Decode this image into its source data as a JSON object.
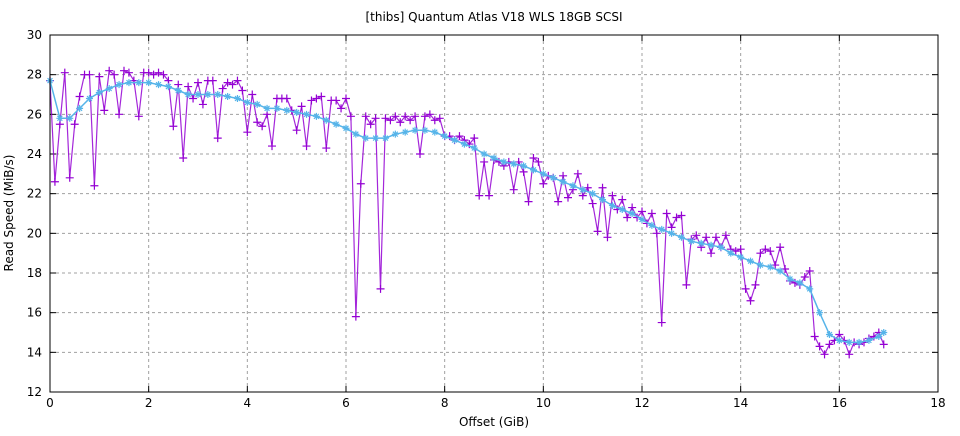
{
  "chart_data": {
    "type": "line",
    "title": "[thibs] Quantum Atlas V18 WLS 18GB SCSI",
    "xlabel": "Offset (GiB)",
    "ylabel": "Read Speed (MiB/s)",
    "xlim": [
      0,
      18
    ],
    "ylim": [
      12,
      30
    ],
    "xticks": [
      0,
      2,
      4,
      6,
      8,
      10,
      12,
      14,
      16,
      18
    ],
    "yticks": [
      12,
      14,
      16,
      18,
      20,
      22,
      24,
      26,
      28,
      30
    ],
    "grid": true,
    "colors": {
      "raw": "#9400d3",
      "smooth": "#56b4e9"
    },
    "series": [
      {
        "marker": "plus",
        "color": "#9400d3",
        "points": [
          [
            0.0,
            27.7
          ],
          [
            0.1,
            22.6
          ],
          [
            0.2,
            25.5
          ],
          [
            0.3,
            28.1
          ],
          [
            0.4,
            22.8
          ],
          [
            0.5,
            25.5
          ],
          [
            0.6,
            26.9
          ],
          [
            0.7,
            28.0
          ],
          [
            0.8,
            28.0
          ],
          [
            0.9,
            22.4
          ],
          [
            1.0,
            27.9
          ],
          [
            1.1,
            26.2
          ],
          [
            1.2,
            28.2
          ],
          [
            1.3,
            28.0
          ],
          [
            1.4,
            26.0
          ],
          [
            1.5,
            28.2
          ],
          [
            1.6,
            28.1
          ],
          [
            1.7,
            27.7
          ],
          [
            1.8,
            25.9
          ],
          [
            1.9,
            28.1
          ],
          [
            2.0,
            28.1
          ],
          [
            2.1,
            28.0
          ],
          [
            2.2,
            28.1
          ],
          [
            2.3,
            28.0
          ],
          [
            2.4,
            27.7
          ],
          [
            2.5,
            25.4
          ],
          [
            2.6,
            27.5
          ],
          [
            2.7,
            23.8
          ],
          [
            2.8,
            27.4
          ],
          [
            2.9,
            26.8
          ],
          [
            3.0,
            27.6
          ],
          [
            3.1,
            26.5
          ],
          [
            3.2,
            27.7
          ],
          [
            3.3,
            27.7
          ],
          [
            3.4,
            24.8
          ],
          [
            3.5,
            27.3
          ],
          [
            3.6,
            27.6
          ],
          [
            3.7,
            27.5
          ],
          [
            3.8,
            27.7
          ],
          [
            3.9,
            27.2
          ],
          [
            4.0,
            25.1
          ],
          [
            4.1,
            27.0
          ],
          [
            4.2,
            25.6
          ],
          [
            4.3,
            25.4
          ],
          [
            4.4,
            26.0
          ],
          [
            4.5,
            24.4
          ],
          [
            4.6,
            26.8
          ],
          [
            4.7,
            26.8
          ],
          [
            4.8,
            26.8
          ],
          [
            4.9,
            26.2
          ],
          [
            5.0,
            25.2
          ],
          [
            5.1,
            26.4
          ],
          [
            5.2,
            24.4
          ],
          [
            5.3,
            26.7
          ],
          [
            5.4,
            26.8
          ],
          [
            5.5,
            26.9
          ],
          [
            5.6,
            24.3
          ],
          [
            5.7,
            26.7
          ],
          [
            5.8,
            26.7
          ],
          [
            5.9,
            26.3
          ],
          [
            6.0,
            26.8
          ],
          [
            6.1,
            25.9
          ],
          [
            6.2,
            15.8
          ],
          [
            6.3,
            22.5
          ],
          [
            6.4,
            25.9
          ],
          [
            6.5,
            25.5
          ],
          [
            6.6,
            25.8
          ],
          [
            6.7,
            17.2
          ],
          [
            6.8,
            25.8
          ],
          [
            6.9,
            25.7
          ],
          [
            7.0,
            25.9
          ],
          [
            7.1,
            25.6
          ],
          [
            7.2,
            25.9
          ],
          [
            7.3,
            25.7
          ],
          [
            7.4,
            25.9
          ],
          [
            7.5,
            24.0
          ],
          [
            7.6,
            25.9
          ],
          [
            7.7,
            26.0
          ],
          [
            7.8,
            25.7
          ],
          [
            7.9,
            25.8
          ],
          [
            8.0,
            24.9
          ],
          [
            8.1,
            24.9
          ],
          [
            8.2,
            24.7
          ],
          [
            8.3,
            24.9
          ],
          [
            8.4,
            24.7
          ],
          [
            8.5,
            24.5
          ],
          [
            8.6,
            24.8
          ],
          [
            8.7,
            21.9
          ],
          [
            8.8,
            23.6
          ],
          [
            8.9,
            21.9
          ],
          [
            9.0,
            23.7
          ],
          [
            9.1,
            23.6
          ],
          [
            9.2,
            23.4
          ],
          [
            9.3,
            23.6
          ],
          [
            9.4,
            22.2
          ],
          [
            9.5,
            23.6
          ],
          [
            9.6,
            23.1
          ],
          [
            9.7,
            21.6
          ],
          [
            9.8,
            23.8
          ],
          [
            9.9,
            23.6
          ],
          [
            10.0,
            22.5
          ],
          [
            10.1,
            22.9
          ],
          [
            10.2,
            22.8
          ],
          [
            10.3,
            21.6
          ],
          [
            10.4,
            22.9
          ],
          [
            10.5,
            21.8
          ],
          [
            10.6,
            22.2
          ],
          [
            10.7,
            23.0
          ],
          [
            10.8,
            21.9
          ],
          [
            10.9,
            22.3
          ],
          [
            11.0,
            21.5
          ],
          [
            11.1,
            20.1
          ],
          [
            11.2,
            22.3
          ],
          [
            11.3,
            19.8
          ],
          [
            11.4,
            21.9
          ],
          [
            11.5,
            21.2
          ],
          [
            11.6,
            21.7
          ],
          [
            11.7,
            20.8
          ],
          [
            11.8,
            21.3
          ],
          [
            11.9,
            20.8
          ],
          [
            12.0,
            21.1
          ],
          [
            12.1,
            20.5
          ],
          [
            12.2,
            21.0
          ],
          [
            12.3,
            20.0
          ],
          [
            12.4,
            15.5
          ],
          [
            12.5,
            21.0
          ],
          [
            12.6,
            20.3
          ],
          [
            12.7,
            20.8
          ],
          [
            12.8,
            20.9
          ],
          [
            12.9,
            17.4
          ],
          [
            13.0,
            19.7
          ],
          [
            13.1,
            19.9
          ],
          [
            13.2,
            19.3
          ],
          [
            13.3,
            19.8
          ],
          [
            13.4,
            19.0
          ],
          [
            13.5,
            19.8
          ],
          [
            13.6,
            19.3
          ],
          [
            13.7,
            19.9
          ],
          [
            13.8,
            19.2
          ],
          [
            13.9,
            19.1
          ],
          [
            14.0,
            19.2
          ],
          [
            14.1,
            17.2
          ],
          [
            14.2,
            16.6
          ],
          [
            14.3,
            17.4
          ],
          [
            14.4,
            19.0
          ],
          [
            14.5,
            19.2
          ],
          [
            14.6,
            19.1
          ],
          [
            14.7,
            18.4
          ],
          [
            14.8,
            19.3
          ],
          [
            14.9,
            18.2
          ],
          [
            15.0,
            17.6
          ],
          [
            15.1,
            17.5
          ],
          [
            15.2,
            17.4
          ],
          [
            15.3,
            17.8
          ],
          [
            15.4,
            18.1
          ],
          [
            15.5,
            14.8
          ],
          [
            15.6,
            14.3
          ],
          [
            15.7,
            13.9
          ],
          [
            15.8,
            14.4
          ],
          [
            15.9,
            14.6
          ],
          [
            16.0,
            14.9
          ],
          [
            16.1,
            14.6
          ],
          [
            16.2,
            13.9
          ],
          [
            16.3,
            14.5
          ],
          [
            16.4,
            14.4
          ],
          [
            16.5,
            14.5
          ],
          [
            16.6,
            14.7
          ],
          [
            16.7,
            14.8
          ],
          [
            16.8,
            15.0
          ],
          [
            16.9,
            14.4
          ]
        ]
      },
      {
        "marker": "star",
        "color": "#56b4e9",
        "points": [
          [
            0.0,
            27.7
          ],
          [
            0.2,
            25.8
          ],
          [
            0.4,
            25.8
          ],
          [
            0.6,
            26.3
          ],
          [
            0.8,
            26.8
          ],
          [
            1.0,
            27.1
          ],
          [
            1.2,
            27.3
          ],
          [
            1.4,
            27.5
          ],
          [
            1.6,
            27.6
          ],
          [
            1.8,
            27.6
          ],
          [
            2.0,
            27.6
          ],
          [
            2.2,
            27.5
          ],
          [
            2.4,
            27.4
          ],
          [
            2.6,
            27.2
          ],
          [
            2.8,
            27.0
          ],
          [
            3.0,
            27.0
          ],
          [
            3.2,
            27.0
          ],
          [
            3.4,
            27.0
          ],
          [
            3.6,
            26.9
          ],
          [
            3.8,
            26.8
          ],
          [
            4.0,
            26.6
          ],
          [
            4.2,
            26.5
          ],
          [
            4.4,
            26.3
          ],
          [
            4.6,
            26.3
          ],
          [
            4.8,
            26.2
          ],
          [
            5.0,
            26.1
          ],
          [
            5.2,
            26.0
          ],
          [
            5.4,
            25.9
          ],
          [
            5.6,
            25.7
          ],
          [
            5.8,
            25.5
          ],
          [
            6.0,
            25.3
          ],
          [
            6.2,
            25.0
          ],
          [
            6.4,
            24.8
          ],
          [
            6.6,
            24.8
          ],
          [
            6.8,
            24.8
          ],
          [
            7.0,
            25.0
          ],
          [
            7.2,
            25.1
          ],
          [
            7.4,
            25.2
          ],
          [
            7.6,
            25.2
          ],
          [
            7.8,
            25.1
          ],
          [
            8.0,
            24.9
          ],
          [
            8.2,
            24.7
          ],
          [
            8.4,
            24.5
          ],
          [
            8.6,
            24.3
          ],
          [
            8.8,
            24.0
          ],
          [
            9.0,
            23.8
          ],
          [
            9.2,
            23.6
          ],
          [
            9.4,
            23.5
          ],
          [
            9.6,
            23.4
          ],
          [
            9.8,
            23.2
          ],
          [
            10.0,
            23.0
          ],
          [
            10.2,
            22.8
          ],
          [
            10.4,
            22.6
          ],
          [
            10.6,
            22.4
          ],
          [
            10.8,
            22.2
          ],
          [
            11.0,
            22.0
          ],
          [
            11.2,
            21.7
          ],
          [
            11.4,
            21.4
          ],
          [
            11.6,
            21.2
          ],
          [
            11.8,
            21.0
          ],
          [
            12.0,
            20.7
          ],
          [
            12.2,
            20.4
          ],
          [
            12.4,
            20.2
          ],
          [
            12.6,
            20.0
          ],
          [
            12.8,
            19.8
          ],
          [
            13.0,
            19.6
          ],
          [
            13.2,
            19.5
          ],
          [
            13.4,
            19.4
          ],
          [
            13.6,
            19.3
          ],
          [
            13.8,
            19.0
          ],
          [
            14.0,
            18.8
          ],
          [
            14.2,
            18.6
          ],
          [
            14.4,
            18.4
          ],
          [
            14.6,
            18.3
          ],
          [
            14.8,
            18.1
          ],
          [
            15.0,
            17.7
          ],
          [
            15.2,
            17.5
          ],
          [
            15.4,
            17.2
          ],
          [
            15.6,
            16.0
          ],
          [
            15.8,
            14.9
          ],
          [
            16.0,
            14.6
          ],
          [
            16.2,
            14.5
          ],
          [
            16.4,
            14.5
          ],
          [
            16.6,
            14.6
          ],
          [
            16.8,
            14.8
          ],
          [
            16.9,
            15.0
          ]
        ]
      }
    ]
  }
}
